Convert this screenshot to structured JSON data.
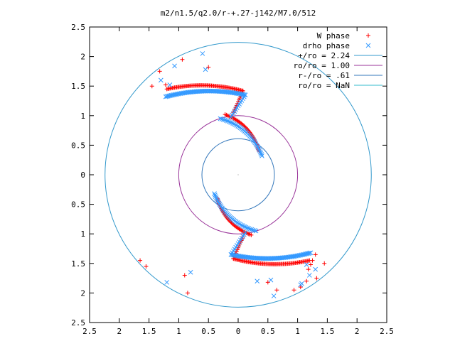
{
  "chart_data": {
    "type": "scatter",
    "title": "m2/n1.5/q2.0/r-+.27-j142/M7.0/512",
    "xlabel": "",
    "ylabel": "",
    "xlim": [
      2.5,
      -2.5
    ],
    "ylim": [
      -2.5,
      2.5
    ],
    "x_ticks": [
      {
        "value": 2.5,
        "label": "2.5"
      },
      {
        "value": 2.0,
        "label": "2"
      },
      {
        "value": 1.5,
        "label": "1.5"
      },
      {
        "value": 1.0,
        "label": "1"
      },
      {
        "value": 0.5,
        "label": "0.5"
      },
      {
        "value": 0.0,
        "label": "0"
      },
      {
        "value": -0.5,
        "label": "0.5"
      },
      {
        "value": -1.0,
        "label": "1"
      },
      {
        "value": -1.5,
        "label": "1.5"
      },
      {
        "value": -2.0,
        "label": "2"
      },
      {
        "value": -2.5,
        "label": "2.5"
      }
    ],
    "y_ticks": [
      {
        "value": 2.5,
        "label": "2.5"
      },
      {
        "value": 2.0,
        "label": "2"
      },
      {
        "value": 1.5,
        "label": "1.5"
      },
      {
        "value": 1.0,
        "label": "1"
      },
      {
        "value": 0.5,
        "label": "0.5"
      },
      {
        "value": 0.0,
        "label": "0"
      },
      {
        "value": -0.5,
        "label": "0.5"
      },
      {
        "value": -1.0,
        "label": "1"
      },
      {
        "value": -1.5,
        "label": "1.5"
      },
      {
        "value": -2.0,
        "label": "2"
      },
      {
        "value": -2.5,
        "label": "2.5"
      }
    ],
    "grid": false,
    "legend_position": "top-right",
    "series": [
      {
        "name": "W phase",
        "marker": "plus",
        "color": "#ff0000",
        "dense_arms": [
          {
            "from": [
              -0.08,
              1.42
            ],
            "to": [
              1.2,
              1.45
            ],
            "bulge": 0.12,
            "end_hook": [
              0.08,
              1.05
            ],
            "points": 70
          },
          {
            "from": [
              0.08,
              -1.42
            ],
            "to": [
              -1.2,
              -1.45
            ],
            "bulge": 0.12,
            "end_hook": [
              -0.08,
              -1.05
            ],
            "points": 70
          },
          {
            "from": [
              0.22,
              1.02
            ],
            "to": [
              -0.35,
              0.4
            ],
            "bulge": -0.25,
            "points": 40
          },
          {
            "from": [
              -0.22,
              -1.02
            ],
            "to": [
              0.35,
              -0.4
            ],
            "bulge": -0.25,
            "points": 40
          }
        ],
        "points": [
          [
            0.94,
            1.95
          ],
          [
            0.5,
            1.82
          ],
          [
            1.32,
            1.75
          ],
          [
            1.45,
            1.5
          ],
          [
            1.22,
            1.52
          ],
          [
            -1.22,
            -1.52
          ],
          [
            -1.45,
            -1.5
          ],
          [
            -1.32,
            -1.75
          ],
          [
            -0.94,
            -1.95
          ],
          [
            -0.5,
            -1.82
          ],
          [
            1.65,
            -1.45
          ],
          [
            1.55,
            -1.55
          ],
          [
            0.9,
            -1.7
          ],
          [
            0.85,
            -2.0
          ],
          [
            -1.18,
            -1.6
          ],
          [
            -1.25,
            -1.45
          ],
          [
            -1.3,
            -1.35
          ],
          [
            -1.15,
            -1.8
          ],
          [
            -1.05,
            -1.9
          ],
          [
            -0.65,
            -1.95
          ]
        ]
      },
      {
        "name": "drho phase",
        "marker": "cross",
        "color": "#3399ff",
        "dense_arms": [
          {
            "from": [
              -0.12,
              1.35
            ],
            "to": [
              1.22,
              1.32
            ],
            "bulge": 0.12,
            "end_hook": [
              0.12,
              0.98
            ],
            "points": 70
          },
          {
            "from": [
              0.12,
              -1.35
            ],
            "to": [
              -1.22,
              -1.32
            ],
            "bulge": 0.12,
            "end_hook": [
              -0.12,
              -0.98
            ],
            "points": 70
          },
          {
            "from": [
              0.3,
              0.95
            ],
            "to": [
              -0.4,
              0.32
            ],
            "bulge": -0.25,
            "points": 40
          },
          {
            "from": [
              -0.3,
              -0.95
            ],
            "to": [
              0.4,
              -0.32
            ],
            "bulge": -0.25,
            "points": 40
          }
        ],
        "points": [
          [
            0.6,
            2.05
          ],
          [
            0.55,
            1.78
          ],
          [
            1.07,
            1.84
          ],
          [
            1.15,
            1.52
          ],
          [
            1.3,
            1.6
          ],
          [
            -1.3,
            -1.6
          ],
          [
            -1.15,
            -1.52
          ],
          [
            -1.07,
            -1.84
          ],
          [
            -0.6,
            -2.05
          ],
          [
            -0.55,
            -1.78
          ],
          [
            1.2,
            -1.82
          ],
          [
            0.8,
            -1.65
          ],
          [
            -0.32,
            -1.8
          ],
          [
            -1.05,
            -1.86
          ],
          [
            -1.2,
            -1.7
          ]
        ]
      }
    ],
    "circles": [
      {
        "name": "+/ro = 2.24",
        "radius": 2.24,
        "color": "#3399cc"
      },
      {
        "name": "ro/ro = 1.00",
        "radius": 1.0,
        "color": "#993399"
      },
      {
        "name": "r-/ro = .61",
        "radius": 0.61,
        "color": "#3377bb"
      },
      {
        "name": "ro/ro = NaN",
        "radius": null,
        "color": "#33bbcc"
      }
    ]
  }
}
